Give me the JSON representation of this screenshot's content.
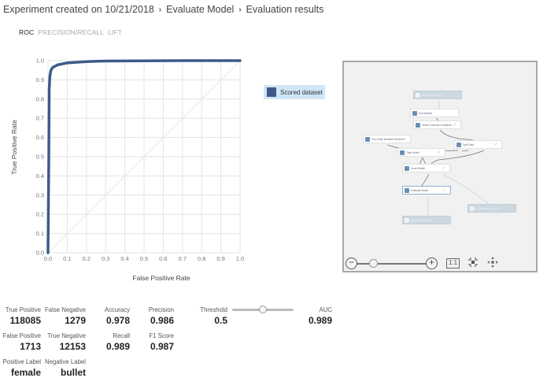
{
  "breadcrumb": {
    "items": [
      "Experiment created on 10/21/2018",
      "Evaluate Model",
      "Evaluation results"
    ],
    "separator": "›"
  },
  "tabs": [
    {
      "label": "ROC",
      "active": true
    },
    {
      "label": "PRECISION/RECALL",
      "active": false
    },
    {
      "label": "LIFT",
      "active": false
    }
  ],
  "legend": {
    "label": "Scored dataset",
    "color": "#3d5a8a"
  },
  "chart_data": {
    "type": "line",
    "title": "ROC",
    "xlabel": "False Positive Rate",
    "ylabel": "True Positive Rate",
    "xlim": [
      0.0,
      1.0
    ],
    "ylim": [
      0.0,
      1.0
    ],
    "x_ticks": [
      "0.0",
      "0.1",
      "0.2",
      "0.3",
      "0.4",
      "0.5",
      "0.6",
      "0.7",
      "0.8",
      "0.9",
      "1.0"
    ],
    "y_ticks": [
      "0.0",
      "0.1",
      "0.2",
      "0.3",
      "0.4",
      "0.5",
      "0.6",
      "0.7",
      "0.8",
      "0.9",
      "1.0"
    ],
    "grid": true,
    "legend_position": "right",
    "series": [
      {
        "name": "Scored dataset",
        "color": "#3d5a8a",
        "x": [
          0.0,
          0.004,
          0.006,
          0.01,
          0.015,
          0.025,
          0.05,
          0.1,
          0.2,
          0.3,
          0.5,
          0.7,
          1.0
        ],
        "y": [
          0.0,
          0.5,
          0.85,
          0.92,
          0.95,
          0.965,
          0.978,
          0.988,
          0.995,
          0.998,
          0.999,
          1.0,
          1.0
        ]
      },
      {
        "name": "Random baseline",
        "color": "#e6e6e6",
        "x": [
          0.0,
          1.0
        ],
        "y": [
          0.0,
          1.0
        ]
      }
    ]
  },
  "diagram": {
    "nodes": [
      {
        "id": "ws-input",
        "label": "Web service input",
        "type": "webservice"
      },
      {
        "id": "dataset",
        "label": "Kira dataset",
        "type": "module"
      },
      {
        "id": "select-cols",
        "label": "Select Columns in Dataset",
        "type": "module",
        "done": true
      },
      {
        "id": "two-class",
        "label": "Two-Class Boosted Decision...",
        "type": "module",
        "done": true
      },
      {
        "id": "split",
        "label": "Split Data",
        "type": "module",
        "done": true
      },
      {
        "id": "train",
        "label": "Train Model",
        "type": "module",
        "done": true
      },
      {
        "id": "score",
        "label": "Score Model",
        "type": "module",
        "done": true
      },
      {
        "id": "evaluate",
        "label": "Evaluate Model",
        "type": "module",
        "done": true,
        "selected": true
      },
      {
        "id": "ws-output-1",
        "label": "Web service output",
        "type": "webservice"
      },
      {
        "id": "ws-output-2",
        "label": "Web service output",
        "type": "webservice"
      }
    ],
    "check_glyph": "✓",
    "controls": {
      "zoom_out": "−",
      "zoom_in": "+",
      "actual_size": "1:1",
      "fit_icon": "fit-to-screen-icon",
      "pan_icon": "pan-icon"
    }
  },
  "metrics": {
    "true_positive": {
      "label": "True Positive",
      "value": "118085"
    },
    "false_negative": {
      "label": "False Negative",
      "value": "1279"
    },
    "false_positive": {
      "label": "False Positive",
      "value": "1713"
    },
    "true_negative": {
      "label": "True Negative",
      "value": "12153"
    },
    "accuracy": {
      "label": "Accuracy",
      "value": "0.978"
    },
    "precision": {
      "label": "Precision",
      "value": "0.986"
    },
    "recall": {
      "label": "Recall",
      "value": "0.989"
    },
    "f1": {
      "label": "F1 Score",
      "value": "0.987"
    },
    "threshold": {
      "label": "Threshold",
      "value": "0.5"
    },
    "auc": {
      "label": "AUC",
      "value": "0.989"
    },
    "positive_label": {
      "label": "Positive Label",
      "value": "female"
    },
    "negative_label": {
      "label": "Negative Label",
      "value": "bullet"
    }
  }
}
